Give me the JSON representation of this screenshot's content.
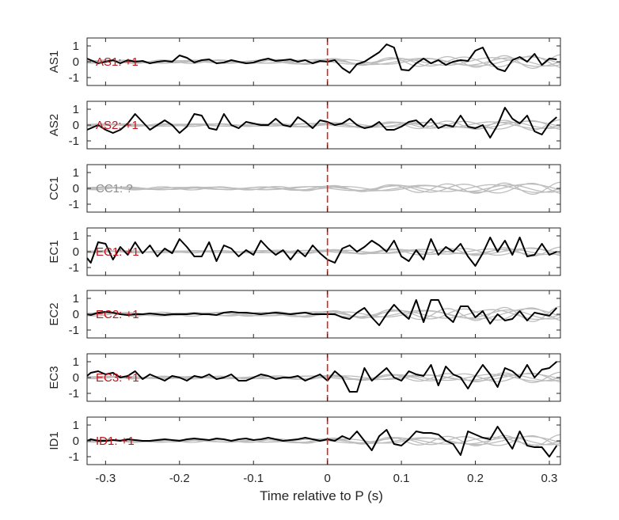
{
  "chart_data": {
    "type": "line",
    "xlabel": "Time relative to P (s)",
    "xlim": [
      -0.325,
      0.315
    ],
    "xticks": [
      -0.3,
      -0.2,
      -0.1,
      0,
      0.1,
      0.2,
      0.3
    ],
    "xtick_labels": [
      "-0.3",
      "-0.2",
      "-0.1",
      "0",
      "0.1",
      "0.2",
      "0.3"
    ],
    "ylim": [
      -1.5,
      1.5
    ],
    "yticks": [
      1,
      0,
      -1
    ],
    "ytick_labels": [
      "1",
      "0",
      "-1"
    ],
    "p_arrival_time": 0,
    "colors": {
      "stacked": "#000000",
      "traces": "#bdbdbd",
      "marker": "#e2231a",
      "positive_label": "#c0161d",
      "unknown_label": "#8c8c8c"
    },
    "panels": [
      {
        "station": "AS1",
        "annotation": "AS1: +1",
        "polarity": "+1",
        "stacked_x": [
          -0.325,
          -0.32,
          -0.31,
          -0.3,
          -0.29,
          -0.28,
          -0.27,
          -0.26,
          -0.25,
          -0.24,
          -0.23,
          -0.22,
          -0.21,
          -0.2,
          -0.19,
          -0.18,
          -0.17,
          -0.16,
          -0.15,
          -0.14,
          -0.13,
          -0.12,
          -0.11,
          -0.1,
          -0.09,
          -0.08,
          -0.07,
          -0.06,
          -0.05,
          -0.04,
          -0.03,
          -0.02,
          -0.01,
          0,
          0.01,
          0.02,
          0.03,
          0.04,
          0.05,
          0.06,
          0.07,
          0.08,
          0.09,
          0.1,
          0.11,
          0.12,
          0.13,
          0.14,
          0.15,
          0.16,
          0.17,
          0.18,
          0.19,
          0.2,
          0.21,
          0.22,
          0.23,
          0.24,
          0.25,
          0.26,
          0.27,
          0.28,
          0.29,
          0.3,
          0.31
        ],
        "stacked_y": [
          0.2,
          0.1,
          -0.1,
          0.0,
          0.1,
          -0.1,
          0.1,
          0.0,
          0.05,
          -0.1,
          0.0,
          0.05,
          0.0,
          0.4,
          0.25,
          -0.05,
          0.1,
          0.15,
          -0.1,
          -0.05,
          0.1,
          0.0,
          -0.1,
          -0.05,
          0.1,
          0.2,
          0.05,
          0.1,
          0.15,
          0.0,
          0.1,
          -0.1,
          0.05,
          0.0,
          0.1,
          -0.4,
          -0.7,
          -0.15,
          0.0,
          0.3,
          0.6,
          1.1,
          0.9,
          -0.5,
          -0.55,
          -0.1,
          0.2,
          -0.1,
          0.1,
          -0.2,
          0.0,
          0.1,
          0.05,
          0.7,
          0.9,
          0.0,
          -0.45,
          -0.6,
          0.1,
          0.3,
          0.0,
          0.5,
          -0.2,
          0.2,
          0.15
        ],
        "gray_amplitude": 0.45
      },
      {
        "station": "AS2",
        "annotation": "AS2: +1",
        "polarity": "+1",
        "stacked_x": [
          -0.325,
          -0.32,
          -0.31,
          -0.3,
          -0.29,
          -0.28,
          -0.27,
          -0.26,
          -0.25,
          -0.24,
          -0.23,
          -0.22,
          -0.21,
          -0.2,
          -0.19,
          -0.18,
          -0.17,
          -0.16,
          -0.15,
          -0.14,
          -0.13,
          -0.12,
          -0.11,
          -0.1,
          -0.09,
          -0.08,
          -0.07,
          -0.06,
          -0.05,
          -0.04,
          -0.03,
          -0.02,
          -0.01,
          0,
          0.01,
          0.02,
          0.03,
          0.04,
          0.05,
          0.06,
          0.07,
          0.08,
          0.09,
          0.1,
          0.11,
          0.12,
          0.13,
          0.14,
          0.15,
          0.16,
          0.17,
          0.18,
          0.19,
          0.2,
          0.21,
          0.22,
          0.23,
          0.24,
          0.25,
          0.26,
          0.27,
          0.28,
          0.29,
          0.3,
          0.31
        ],
        "stacked_y": [
          -0.3,
          -0.2,
          0.0,
          -0.3,
          -0.5,
          -0.3,
          0.1,
          0.7,
          0.2,
          -0.3,
          0.0,
          0.3,
          0.0,
          -0.5,
          -0.1,
          0.7,
          0.6,
          -0.2,
          -0.3,
          0.7,
          0.0,
          -0.2,
          0.2,
          0.1,
          0.0,
          0.0,
          0.4,
          0.0,
          -0.1,
          0.5,
          0.2,
          -0.2,
          0.3,
          0.2,
          0.0,
          0.1,
          0.4,
          0.0,
          -0.2,
          -0.1,
          0.2,
          -0.3,
          -0.3,
          -0.1,
          0.2,
          0.3,
          -0.1,
          0.4,
          -0.2,
          0.0,
          -0.1,
          0.6,
          -0.1,
          -0.2,
          0.0,
          -0.8,
          0.0,
          1.1,
          0.4,
          0.1,
          0.6,
          -0.4,
          -0.6,
          0.1,
          0.5
        ],
        "gray_amplitude": 0.35
      },
      {
        "station": "CC1",
        "annotation": "CC1: ?",
        "polarity": "?",
        "stacked_x": [],
        "stacked_y": [],
        "gray_amplitude": 0.4
      },
      {
        "station": "EC1",
        "annotation": "EC1: +1",
        "polarity": "+1",
        "stacked_x": [
          -0.325,
          -0.32,
          -0.31,
          -0.3,
          -0.29,
          -0.28,
          -0.27,
          -0.26,
          -0.25,
          -0.24,
          -0.23,
          -0.22,
          -0.21,
          -0.2,
          -0.19,
          -0.18,
          -0.17,
          -0.16,
          -0.15,
          -0.14,
          -0.13,
          -0.12,
          -0.11,
          -0.1,
          -0.09,
          -0.08,
          -0.07,
          -0.06,
          -0.05,
          -0.04,
          -0.03,
          -0.02,
          -0.01,
          0,
          0.01,
          0.02,
          0.03,
          0.04,
          0.05,
          0.06,
          0.07,
          0.08,
          0.09,
          0.1,
          0.11,
          0.12,
          0.13,
          0.14,
          0.15,
          0.16,
          0.17,
          0.18,
          0.19,
          0.2,
          0.21,
          0.22,
          0.23,
          0.24,
          0.25,
          0.26,
          0.27,
          0.28,
          0.29,
          0.3,
          0.31
        ],
        "stacked_y": [
          -0.4,
          -0.7,
          0.6,
          0.5,
          -0.5,
          0.3,
          -0.2,
          0.6,
          -0.1,
          0.4,
          -0.3,
          0.2,
          -0.1,
          0.8,
          0.3,
          -0.3,
          -0.3,
          0.6,
          -0.6,
          0.4,
          0.2,
          -0.3,
          0.1,
          -0.2,
          0.7,
          0.2,
          -0.2,
          0.1,
          -0.5,
          0.1,
          -0.3,
          0.4,
          -0.1,
          -0.5,
          -0.7,
          0.2,
          0.4,
          0.0,
          0.3,
          0.7,
          0.4,
          0.0,
          0.7,
          -0.3,
          -0.6,
          0.1,
          -0.5,
          0.8,
          -0.2,
          0.3,
          0.0,
          0.5,
          -0.3,
          -0.9,
          -0.1,
          0.9,
          0.0,
          0.7,
          -0.2,
          0.9,
          -0.3,
          -0.2,
          0.5,
          -0.2,
          0.0
        ],
        "gray_amplitude": 0.3
      },
      {
        "station": "EC2",
        "annotation": "EC2: +1",
        "polarity": "+1",
        "stacked_x": [
          -0.325,
          -0.32,
          -0.31,
          -0.3,
          -0.29,
          -0.28,
          -0.27,
          -0.26,
          -0.25,
          -0.24,
          -0.23,
          -0.22,
          -0.21,
          -0.2,
          -0.19,
          -0.18,
          -0.17,
          -0.16,
          -0.15,
          -0.14,
          -0.13,
          -0.12,
          -0.11,
          -0.1,
          -0.09,
          -0.08,
          -0.07,
          -0.06,
          -0.05,
          -0.04,
          -0.03,
          -0.02,
          -0.01,
          0,
          0.01,
          0.02,
          0.03,
          0.04,
          0.05,
          0.06,
          0.07,
          0.08,
          0.09,
          0.1,
          0.11,
          0.12,
          0.13,
          0.14,
          0.15,
          0.16,
          0.17,
          0.18,
          0.19,
          0.2,
          0.21,
          0.22,
          0.23,
          0.24,
          0.25,
          0.26,
          0.27,
          0.28,
          0.29,
          0.3,
          0.31
        ],
        "stacked_y": [
          0.0,
          -0.05,
          0.1,
          0.15,
          0.1,
          0.0,
          -0.05,
          0.0,
          0.0,
          0.05,
          0.0,
          -0.05,
          0.0,
          0.0,
          0.0,
          0.05,
          0.0,
          0.0,
          -0.05,
          0.1,
          0.15,
          0.1,
          0.1,
          0.05,
          0.0,
          0.05,
          0.1,
          0.05,
          0.0,
          0.05,
          0.1,
          0.0,
          0.0,
          0.0,
          0.0,
          -0.2,
          -0.3,
          0.1,
          0.4,
          -0.2,
          -0.7,
          0.0,
          0.6,
          0.1,
          -0.3,
          0.9,
          -0.5,
          0.9,
          0.9,
          -0.1,
          -0.5,
          0.5,
          0.5,
          -0.2,
          0.2,
          -0.6,
          0.0,
          -0.4,
          -0.3,
          0.2,
          -0.4,
          0.1,
          0.0,
          -0.1,
          0.4
        ],
        "gray_amplitude": 0.5
      },
      {
        "station": "EC3",
        "annotation": "EC3: +1",
        "polarity": "+1",
        "stacked_x": [
          -0.325,
          -0.32,
          -0.31,
          -0.3,
          -0.29,
          -0.28,
          -0.27,
          -0.26,
          -0.25,
          -0.24,
          -0.23,
          -0.22,
          -0.21,
          -0.2,
          -0.19,
          -0.18,
          -0.17,
          -0.16,
          -0.15,
          -0.14,
          -0.13,
          -0.12,
          -0.11,
          -0.1,
          -0.09,
          -0.08,
          -0.07,
          -0.06,
          -0.05,
          -0.04,
          -0.03,
          -0.02,
          -0.01,
          0,
          0.01,
          0.02,
          0.03,
          0.04,
          0.05,
          0.06,
          0.07,
          0.08,
          0.09,
          0.1,
          0.11,
          0.12,
          0.13,
          0.14,
          0.15,
          0.16,
          0.17,
          0.18,
          0.19,
          0.2,
          0.21,
          0.22,
          0.23,
          0.24,
          0.25,
          0.26,
          0.27,
          0.28,
          0.29,
          0.3,
          0.31
        ],
        "stacked_y": [
          0.1,
          0.3,
          0.4,
          0.2,
          0.3,
          0.0,
          0.1,
          0.4,
          -0.1,
          0.2,
          0.0,
          -0.2,
          0.1,
          0.0,
          -0.2,
          0.1,
          0.0,
          0.2,
          -0.1,
          0.0,
          0.2,
          -0.2,
          -0.2,
          0.0,
          0.2,
          0.1,
          -0.1,
          0.0,
          0.0,
          0.1,
          -0.2,
          0.0,
          0.2,
          -0.2,
          0.4,
          0.0,
          -0.9,
          -0.9,
          0.6,
          -0.2,
          0.2,
          0.6,
          0.0,
          -0.2,
          0.4,
          0.2,
          0.1,
          0.8,
          -0.5,
          0.7,
          0.2,
          0.0,
          -0.7,
          0.1,
          0.8,
          0.2,
          -0.6,
          0.6,
          0.4,
          0.0,
          0.8,
          0.0,
          0.5,
          0.6,
          1.0
        ],
        "gray_amplitude": 0.35
      },
      {
        "station": "ID1",
        "annotation": "ID1: +1",
        "polarity": "+1",
        "stacked_x": [
          -0.325,
          -0.32,
          -0.31,
          -0.3,
          -0.29,
          -0.28,
          -0.27,
          -0.26,
          -0.25,
          -0.24,
          -0.23,
          -0.22,
          -0.21,
          -0.2,
          -0.19,
          -0.18,
          -0.17,
          -0.16,
          -0.15,
          -0.14,
          -0.13,
          -0.12,
          -0.11,
          -0.1,
          -0.09,
          -0.08,
          -0.07,
          -0.06,
          -0.05,
          -0.04,
          -0.03,
          -0.02,
          -0.01,
          0,
          0.01,
          0.02,
          0.03,
          0.04,
          0.05,
          0.06,
          0.07,
          0.08,
          0.09,
          0.1,
          0.11,
          0.12,
          0.13,
          0.14,
          0.15,
          0.16,
          0.17,
          0.18,
          0.19,
          0.2,
          0.21,
          0.22,
          0.23,
          0.24,
          0.25,
          0.26,
          0.27,
          0.28,
          0.29,
          0.3,
          0.31
        ],
        "stacked_y": [
          0.0,
          0.1,
          0.0,
          0.0,
          0.05,
          0.0,
          0.1,
          0.05,
          0.0,
          0.0,
          0.05,
          0.1,
          0.05,
          0.0,
          0.1,
          0.15,
          0.1,
          0.05,
          0.15,
          0.1,
          0.0,
          0.1,
          0.15,
          0.05,
          0.1,
          0.2,
          0.1,
          0.0,
          0.05,
          0.1,
          0.2,
          0.1,
          0.0,
          0.1,
          0.0,
          0.3,
          0.1,
          0.6,
          0.0,
          -0.6,
          0.3,
          0.7,
          -0.2,
          -0.3,
          0.1,
          0.6,
          0.5,
          0.5,
          0.4,
          0.0,
          -0.2,
          -0.9,
          0.6,
          0.4,
          0.2,
          0.1,
          0.9,
          0.2,
          -0.5,
          0.6,
          -0.3,
          -0.4,
          -0.4,
          -1.0,
          -0.3
        ],
        "gray_amplitude": 0.4
      }
    ]
  }
}
